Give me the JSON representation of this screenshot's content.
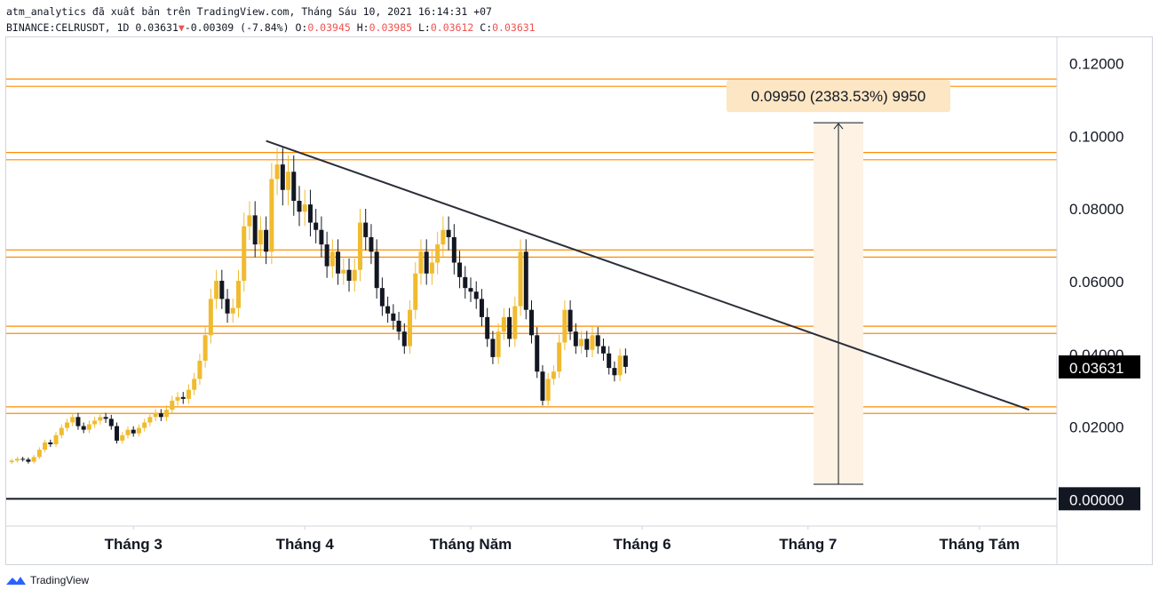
{
  "header": {
    "line1": "atm_analytics đã xuất bản trên TradingView.com, Tháng Sáu 10, 2021 16:14:31 +07",
    "symbol": "BINANCE:CELRUSDT, 1D",
    "last": "0.03631",
    "change_arrow": "▼",
    "change": "-0.00309 (-7.84%)",
    "o_label": "O:",
    "o": "0.03945",
    "h_label": "H:",
    "h": "0.03985",
    "l_label": "L:",
    "l": "0.03612",
    "c_label": "C:",
    "c": "0.03631"
  },
  "footer": {
    "brand": "TradingView"
  },
  "colors": {
    "up": "#f0bb2f",
    "down": "#131722",
    "hline": "#ff8c00",
    "trend": "#2a2e39",
    "measure_fill": "#fdf2e4",
    "measure_label_bg": "#fde6c4",
    "price_label_bg": "#000000",
    "zero_label_bg": "#131722"
  },
  "chart_data": {
    "type": "candlestick",
    "symbol": "BINANCE:CELRUSDT",
    "interval": "1D",
    "ylim": [
      -0.0075,
      0.127
    ],
    "y_ticks": [
      "0.12000",
      "0.10000",
      "0.08000",
      "0.06000",
      "0.04000",
      "0.02000",
      "0.00000"
    ],
    "y_tick_values": [
      0.12,
      0.1,
      0.08,
      0.06,
      0.04,
      0.02,
      0.0
    ],
    "x_ticks": [
      "Tháng 3",
      "Tháng 4",
      "Tháng Năm",
      "Tháng 6",
      "Tháng 7",
      "Tháng Tám"
    ],
    "x_tick_dates": [
      "2021-03-01",
      "2021-04-01",
      "2021-05-01",
      "2021-06-01",
      "2021-07-01",
      "2021-08-01"
    ],
    "xlim": [
      "2021-02-06",
      "2021-08-15"
    ],
    "candle_start_date": "2021-02-07",
    "last_price_label": "0.03631",
    "zero_label": "0.00000",
    "close_series": [
      0.0105,
      0.011,
      0.0108,
      0.0102,
      0.0115,
      0.0135,
      0.0155,
      0.015,
      0.0175,
      0.0195,
      0.021,
      0.0225,
      0.02,
      0.019,
      0.0205,
      0.0215,
      0.0225,
      0.022,
      0.02,
      0.016,
      0.0175,
      0.019,
      0.018,
      0.0195,
      0.021,
      0.0225,
      0.0235,
      0.0225,
      0.0245,
      0.027,
      0.028,
      0.0275,
      0.03,
      0.033,
      0.038,
      0.045,
      0.055,
      0.06,
      0.055,
      0.051,
      0.0525,
      0.06,
      0.075,
      0.078,
      0.07,
      0.074,
      0.068,
      0.088,
      0.092,
      0.085,
      0.09,
      0.082,
      0.079,
      0.081,
      0.076,
      0.074,
      0.07,
      0.064,
      0.068,
      0.062,
      0.063,
      0.06,
      0.063,
      0.076,
      0.072,
      0.068,
      0.058,
      0.053,
      0.051,
      0.049,
      0.046,
      0.042,
      0.052,
      0.062,
      0.068,
      0.062,
      0.065,
      0.07,
      0.074,
      0.072,
      0.065,
      0.061,
      0.058,
      0.057,
      0.055,
      0.05,
      0.044,
      0.039,
      0.046,
      0.05,
      0.044,
      0.053,
      0.068,
      0.052,
      0.045,
      0.035,
      0.027,
      0.033,
      0.035,
      0.043,
      0.052,
      0.046,
      0.042,
      0.044,
      0.041,
      0.045,
      0.042,
      0.04,
      0.036,
      0.034,
      0.0394,
      0.0363
    ],
    "annotations": {
      "horizontal_zones": [
        {
          "low": 0.1135,
          "high": 0.1155
        },
        {
          "low": 0.0933,
          "high": 0.0953
        },
        {
          "low": 0.0665,
          "high": 0.0685
        },
        {
          "low": 0.0455,
          "high": 0.0475
        },
        {
          "low": 0.0235,
          "high": 0.0253
        }
      ],
      "zero_line": 0.0,
      "trendline": {
        "from": [
          "2021-03-25",
          0.0985
        ],
        "to": [
          "2021-08-10",
          0.0245
        ]
      },
      "measure": {
        "from": [
          "2021-07-02",
          0.004
        ],
        "to": [
          "2021-07-11",
          0.1035
        ],
        "label": "0.09950 (2383.53%) 9950"
      }
    }
  }
}
